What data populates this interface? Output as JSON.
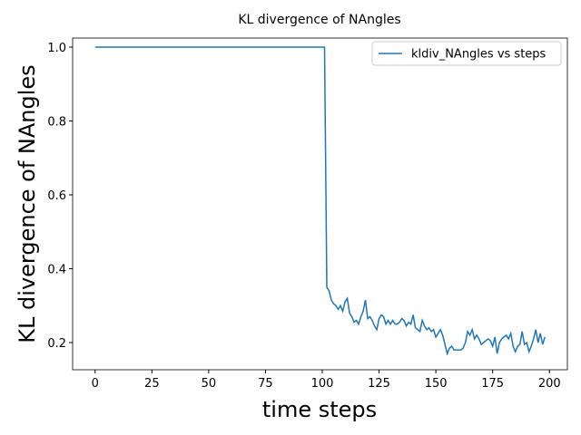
{
  "chart_data": {
    "type": "line",
    "title": "KL divergence of NAngles",
    "x_label": "time steps",
    "y_label": "KL divergence of NAngles",
    "legend": "upper right",
    "xlim": [
      -9.9,
      207.9
    ],
    "ylim": [
      0.1264,
      1.0245
    ],
    "xticks": [
      0,
      25,
      50,
      75,
      100,
      125,
      150,
      175,
      200
    ],
    "yticks": [
      0.2,
      0.4,
      0.6,
      0.8,
      {
        "value": 1.0,
        "label": "1.0"
      }
    ],
    "x": [
      0,
      1,
      2,
      3,
      4,
      5,
      6,
      7,
      8,
      9,
      10,
      11,
      12,
      13,
      14,
      15,
      16,
      17,
      18,
      19,
      20,
      21,
      22,
      23,
      24,
      25,
      26,
      27,
      28,
      29,
      30,
      31,
      32,
      33,
      34,
      35,
      36,
      37,
      38,
      39,
      40,
      41,
      42,
      43,
      44,
      45,
      46,
      47,
      48,
      49,
      50,
      51,
      52,
      53,
      54,
      55,
      56,
      57,
      58,
      59,
      60,
      61,
      62,
      63,
      64,
      65,
      66,
      67,
      68,
      69,
      70,
      71,
      72,
      73,
      74,
      75,
      76,
      77,
      78,
      79,
      80,
      81,
      82,
      83,
      84,
      85,
      86,
      87,
      88,
      89,
      90,
      91,
      92,
      93,
      94,
      95,
      96,
      97,
      98,
      99,
      100,
      101,
      102,
      103,
      104,
      105,
      106,
      107,
      108,
      109,
      110,
      111,
      112,
      113,
      114,
      115,
      116,
      117,
      118,
      119,
      120,
      121,
      122,
      123,
      124,
      125,
      126,
      127,
      128,
      129,
      130,
      131,
      132,
      133,
      134,
      135,
      136,
      137,
      138,
      139,
      140,
      141,
      142,
      143,
      144,
      145,
      146,
      147,
      148,
      149,
      150,
      151,
      152,
      153,
      154,
      155,
      156,
      157,
      158,
      159,
      160,
      161,
      162,
      163,
      164,
      165,
      166,
      167,
      168,
      169,
      170,
      171,
      172,
      173,
      174,
      175,
      176,
      177,
      178,
      179,
      180,
      181,
      182,
      183,
      184,
      185,
      186,
      187,
      188,
      189,
      190,
      191,
      192,
      193,
      194,
      195,
      196,
      197,
      198
    ],
    "series": [
      {
        "name": "kldiv_NAngles vs steps",
        "color": "#1f77b4",
        "values": [
          1,
          1,
          1,
          1,
          1,
          1,
          1,
          1,
          1,
          1,
          1,
          1,
          1,
          1,
          1,
          1,
          1,
          1,
          1,
          1,
          1,
          1,
          1,
          1,
          1,
          1,
          1,
          1,
          1,
          1,
          1,
          1,
          1,
          1,
          1,
          1,
          1,
          1,
          1,
          1,
          1,
          1,
          1,
          1,
          1,
          1,
          1,
          1,
          1,
          1,
          1,
          1,
          1,
          1,
          1,
          1,
          1,
          1,
          1,
          1,
          1,
          1,
          1,
          1,
          1,
          1,
          1,
          1,
          1,
          1,
          1,
          1,
          1,
          1,
          1,
          1,
          1,
          1,
          1,
          1,
          1,
          1,
          1,
          1,
          1,
          1,
          1,
          1,
          1,
          1,
          1,
          1,
          1,
          1,
          1,
          1,
          1,
          1,
          1,
          1,
          1,
          1,
          0.35,
          0.34,
          0.315,
          0.305,
          0.3,
          0.29,
          0.3,
          0.285,
          0.31,
          0.32,
          0.28,
          0.27,
          0.255,
          0.26,
          0.25,
          0.27,
          0.285,
          0.315,
          0.265,
          0.27,
          0.26,
          0.245,
          0.235,
          0.265,
          0.275,
          0.27,
          0.25,
          0.26,
          0.25,
          0.26,
          0.25,
          0.25,
          0.255,
          0.265,
          0.26,
          0.245,
          0.255,
          0.25,
          0.275,
          0.24,
          0.235,
          0.23,
          0.26,
          0.245,
          0.235,
          0.24,
          0.23,
          0.235,
          0.215,
          0.225,
          0.235,
          0.22,
          0.195,
          0.17,
          0.185,
          0.19,
          0.18,
          0.18,
          0.18,
          0.18,
          0.185,
          0.2,
          0.23,
          0.22,
          0.235,
          0.21,
          0.22,
          0.21,
          0.195,
          0.2,
          0.205,
          0.21,
          0.205,
          0.19,
          0.215,
          0.17,
          0.2,
          0.21,
          0.215,
          0.22,
          0.21,
          0.225,
          0.19,
          0.175,
          0.19,
          0.195,
          0.23,
          0.195,
          0.2,
          0.175,
          0.19,
          0.21,
          0.235,
          0.2,
          0.225,
          0.195,
          0.215
        ]
      }
    ]
  }
}
